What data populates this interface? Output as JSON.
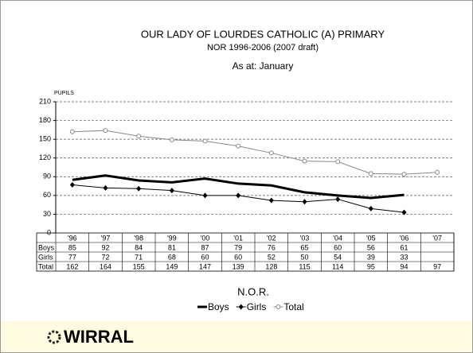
{
  "chart_data": {
    "type": "line",
    "title": "OUR LADY OF LOURDES CATHOLIC (A) PRIMARY",
    "subtitle": "NOR 1996-2006 (2007 draft)",
    "annotation": "As at: January",
    "y_label": "PUPILS",
    "x_label": "N.O.R.",
    "footer": "WIRRAL",
    "categories": [
      "'96",
      "'97",
      "'98",
      "'99",
      "'00",
      "'01",
      "'02",
      "'03",
      "'04",
      "'05",
      "'06",
      "'07"
    ],
    "series": [
      {
        "name": "Boys",
        "color": "#000000",
        "values": [
          85,
          92,
          84,
          81,
          87,
          79,
          76,
          65,
          60,
          56,
          61,
          null
        ]
      },
      {
        "name": "Girls",
        "color": "#000000",
        "values": [
          77,
          72,
          71,
          68,
          60,
          60,
          52,
          50,
          54,
          39,
          33,
          null
        ]
      },
      {
        "name": "Total",
        "color": "#888888",
        "values": [
          162,
          164,
          155,
          149,
          147,
          139,
          128,
          115,
          114,
          95,
          94,
          97
        ]
      }
    ],
    "ylim": [
      0,
      210
    ],
    "yticks": [
      0,
      30,
      60,
      90,
      120,
      150,
      180,
      210
    ],
    "grid": true
  }
}
